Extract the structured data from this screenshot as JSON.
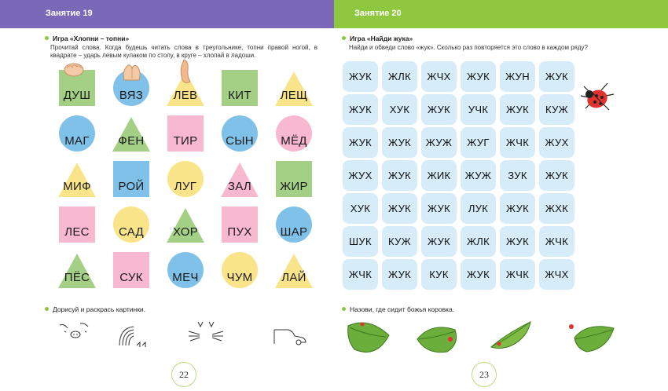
{
  "colors": {
    "left_header": "#7c68b8",
    "right_header": "#8fc73e",
    "square_green": "#a4d085",
    "pink": "#f8b8d0",
    "blue": "#7fc1e8",
    "yellow": "#f9e489",
    "word_cell": "#d6ecf9"
  },
  "left": {
    "header": "Занятие 19",
    "game_title": "Игра «Хлопни – топни»",
    "instruction": "Прочитай слова. Когда будешь читать слова в треугольнике, топни правой ногой, в квадрате – ударь левым кулаком по столу, в круге – хлопай в ладоши.",
    "grid": [
      [
        {
          "word": "ДУШ",
          "shape": "square",
          "color": "#a4d085"
        },
        {
          "word": "ВЯЗ",
          "shape": "circle",
          "color": "#7fc1e8"
        },
        {
          "word": "ЛЕВ",
          "shape": "triangle",
          "color": "#f9e489"
        },
        {
          "word": "КИТ",
          "shape": "square",
          "color": "#a4d085"
        },
        {
          "word": "ЛЕЩ",
          "shape": "triangle",
          "color": "#f9e489"
        }
      ],
      [
        {
          "word": "МАГ",
          "shape": "circle",
          "color": "#7fc1e8"
        },
        {
          "word": "ФЕН",
          "shape": "triangle",
          "color": "#a4d085"
        },
        {
          "word": "ТИР",
          "shape": "square",
          "color": "#f8b8d0"
        },
        {
          "word": "СЫН",
          "shape": "circle",
          "color": "#7fc1e8"
        },
        {
          "word": "МЁД",
          "shape": "circle",
          "color": "#f8b8d0"
        }
      ],
      [
        {
          "word": "МИФ",
          "shape": "triangle",
          "color": "#f9e489"
        },
        {
          "word": "РОЙ",
          "shape": "square",
          "color": "#7fc1e8"
        },
        {
          "word": "ЛУГ",
          "shape": "circle",
          "color": "#f9e489"
        },
        {
          "word": "ЗАЛ",
          "shape": "triangle",
          "color": "#f8b8d0"
        },
        {
          "word": "ЖИР",
          "shape": "square",
          "color": "#a4d085"
        }
      ],
      [
        {
          "word": "ЛЕС",
          "shape": "square",
          "color": "#f8b8d0"
        },
        {
          "word": "САД",
          "shape": "circle",
          "color": "#f9e489"
        },
        {
          "word": "ХОР",
          "shape": "triangle",
          "color": "#a4d085"
        },
        {
          "word": "ПУХ",
          "shape": "square",
          "color": "#f8b8d0"
        },
        {
          "word": "ШАР",
          "shape": "circle",
          "color": "#7fc1e8"
        }
      ],
      [
        {
          "word": "ПЁС",
          "shape": "triangle",
          "color": "#a4d085"
        },
        {
          "word": "СУК",
          "shape": "square",
          "color": "#f8b8d0"
        },
        {
          "word": "МЕЧ",
          "shape": "circle",
          "color": "#7fc1e8"
        },
        {
          "word": "ЧУМ",
          "shape": "circle",
          "color": "#f9e489"
        },
        {
          "word": "ЛАЙ",
          "shape": "triangle",
          "color": "#f9e489"
        }
      ]
    ],
    "draw_title": "Дорисуй и раскрась картинки.",
    "page_number": "22",
    "draw_icons": [
      "pig-outline-icon",
      "hedgehog-outline-icon",
      "cat-whiskers-icon",
      "car-outline-icon"
    ]
  },
  "right": {
    "header": "Занятие 20",
    "game_title": "Игра «Найди жука»",
    "instruction": "Найди и обведи слово «жук». Сколько раз повторяется это слово в каждом ряду?",
    "rows": [
      [
        "ЖУК",
        "ЖЛК",
        "ЖЧХ",
        "ЖУК",
        "ЖУН",
        "ЖУК"
      ],
      [
        "ЖУК",
        "ХУК",
        "ЖУК",
        "УЧК",
        "ЖУК",
        "КУЖ"
      ],
      [
        "ЖУК",
        "ЖУК",
        "ЖУЖ",
        "ЖУГ",
        "ЖЧК",
        "ЖУХ"
      ],
      [
        "ЖУХ",
        "ЖУК",
        "ЖИК",
        "ЖУЖ",
        "ЗУК",
        "ЖУК"
      ],
      [
        "ХУК",
        "ЖУК",
        "ЖУК",
        "ЛУК",
        "ЖУК",
        "ЖХК"
      ],
      [
        "ШУК",
        "КУЖ",
        "ЖУК",
        "ЖЛК",
        "ЖУК",
        "ЖЧК"
      ],
      [
        "ЖЧК",
        "ЖУК",
        "КУК",
        "ЖУК",
        "ЖЧК",
        "ЖЧХ"
      ]
    ],
    "question": "Назови, где сидит божья коровка.",
    "page_number": "23",
    "ladybug_icon": "ladybug-icon"
  }
}
